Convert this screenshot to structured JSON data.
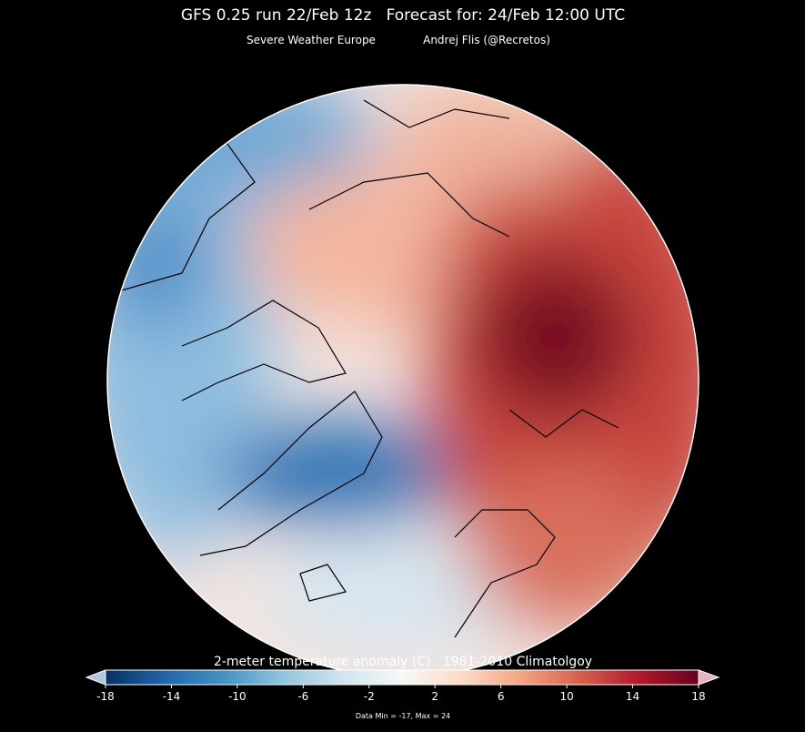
{
  "header": {
    "title": "GFS 0.25 run 22/Feb 12z   Forecast for: 24/Feb 12:00 UTC",
    "credits": [
      "Severe Weather Europe",
      "Andrej Flis (@Recretos)"
    ]
  },
  "colorbar": {
    "label": "2-meter temperature anomaly (C)   1981-2010 Climatolgoy",
    "lim": [
      -18,
      18
    ],
    "ticks": [
      -18,
      -14,
      -10,
      -6,
      -2,
      2,
      6,
      10,
      14,
      18
    ],
    "colors": [
      "#053061",
      "#2166ac",
      "#4393c3",
      "#92c5de",
      "#d1e5f0",
      "#f7f7f7",
      "#fddbc7",
      "#f4a582",
      "#d6604d",
      "#b2182b",
      "#67001f"
    ]
  },
  "footnote": "Data Min = -17, Max = 24"
}
